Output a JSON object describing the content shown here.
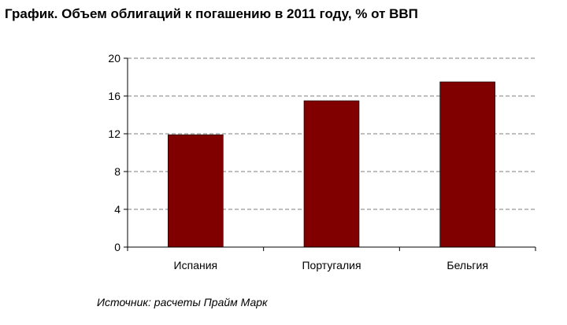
{
  "chart_data": {
    "type": "bar",
    "title": "График. Объем облигаций к погашению в 2011 году, % от ВВП",
    "categories": [
      "Испания",
      "Португалия",
      "Бельгия"
    ],
    "values": [
      11.9,
      15.5,
      17.5
    ],
    "ylim": [
      0,
      20
    ],
    "yticks": [
      "0",
      "4",
      "8",
      "12",
      "16",
      "20"
    ],
    "xlabel": "",
    "ylabel": "",
    "grid": true,
    "bar_color": "#800000",
    "source": "Источник: расчеты Прайм Марк"
  }
}
